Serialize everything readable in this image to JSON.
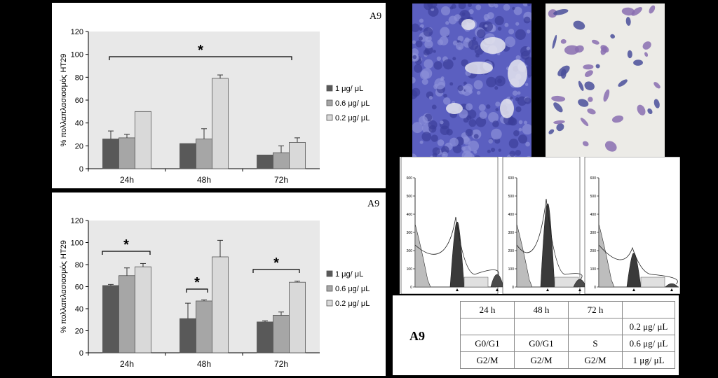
{
  "top_panel": {
    "tag": "A9"
  },
  "bottom_panel": {
    "tag": "A9"
  },
  "chart_data": [
    {
      "type": "bar",
      "ylabel": "% πολλαπλασιασμός HT29",
      "ylim": [
        0,
        120
      ],
      "yticks": [
        0,
        20,
        40,
        60,
        80,
        100,
        120
      ],
      "categories": [
        "24h",
        "48h",
        "72h"
      ],
      "series": [
        {
          "name": "1 μg/ μL",
          "color": "#595959",
          "values": [
            26,
            22,
            12
          ],
          "errors": [
            7,
            0,
            0
          ]
        },
        {
          "name": "0.6 μg/ μL",
          "color": "#a6a6a6",
          "values": [
            27,
            26,
            14
          ],
          "errors": [
            3,
            9,
            6
          ]
        },
        {
          "name": "0.2 μg/ μL",
          "color": "#d9d9d9",
          "values": [
            50,
            79,
            23
          ],
          "errors": [
            0,
            3,
            4
          ]
        }
      ],
      "annotations": [
        "*"
      ],
      "legend": "right",
      "background": "#e8e8e8"
    },
    {
      "type": "bar",
      "ylabel": "% πολλαπλασιασμός HT29",
      "ylim": [
        0,
        120
      ],
      "yticks": [
        0,
        20,
        40,
        60,
        80,
        100,
        120
      ],
      "categories": [
        "24h",
        "48h",
        "72h"
      ],
      "series": [
        {
          "name": "1 μg/ μL",
          "color": "#595959",
          "values": [
            61,
            31,
            28
          ],
          "errors": [
            1,
            14,
            1
          ]
        },
        {
          "name": "0.6 μg/ μL",
          "color": "#a6a6a6",
          "values": [
            70,
            47,
            34
          ],
          "errors": [
            7,
            1,
            3
          ]
        },
        {
          "name": "0.2 μg/ μL",
          "color": "#d9d9d9",
          "values": [
            78,
            87,
            64
          ],
          "errors": [
            3,
            15,
            1
          ]
        }
      ],
      "annotations": [
        "*",
        "*",
        "*"
      ],
      "legend": "right",
      "background": "#e8e8e8"
    }
  ],
  "table": {
    "label": "A9",
    "header": [
      "24 h",
      "48 h",
      "72 h",
      ""
    ],
    "rows": [
      [
        "",
        "",
        "",
        "0.2 μg/ μL"
      ],
      [
        "G0/G1",
        "G0/G1",
        "S",
        "0.6 μg/ μL"
      ],
      [
        "G2/M",
        "G2/M",
        "G2/M",
        "1 μg/ μL"
      ]
    ]
  },
  "flow_ticks": [
    "600",
    "500",
    "400",
    "300",
    "200",
    "100",
    "0"
  ],
  "colors": {
    "micro_stain": "#5b5fc0",
    "micro_cell": "#8a6fb0"
  }
}
